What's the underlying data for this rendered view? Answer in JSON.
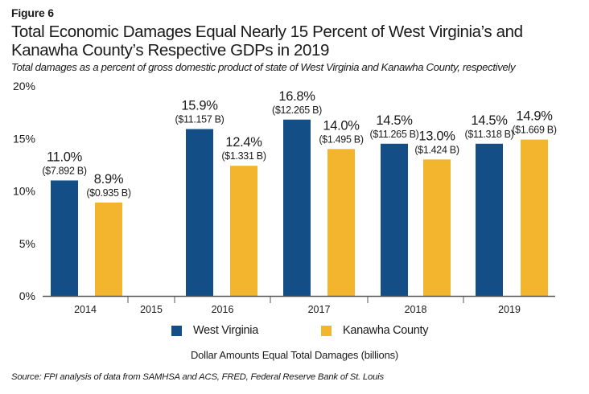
{
  "figure_label": "Figure 6",
  "title": "Total Economic Damages Equal Nearly 15 Percent of West Virginia’s and Kanawha County’s Respective GDPs in 2019",
  "subtitle": "Total damages as a percent of gross domestic product of state of West Virginia and Kanawha County, respectively",
  "note": "Dollar Amounts Equal Total Damages (billions)",
  "source": "Source: FPI analysis of data from SAMHSA and ACS, FRED, Federal Reserve Bank of St. Louis",
  "colors": {
    "west_virginia": "#144e86",
    "kanawha_county": "#f4b52e",
    "axis": "#555555",
    "text": "#1a1a1a"
  },
  "chart_data": {
    "type": "bar",
    "title": "Total Economic Damages Equal Nearly 15 Percent of West Virginia’s and Kanawha County’s Respective GDPs in 2019",
    "subtitle": "Total damages as a percent of gross domestic product of state of West Virginia and Kanawha County, respectively",
    "xlabel": "",
    "ylabel": "",
    "ylim": [
      0,
      20
    ],
    "yticks": [
      0,
      5,
      10,
      15,
      20
    ],
    "ytick_labels": [
      "0%",
      "5%",
      "10%",
      "15%",
      "20%"
    ],
    "grid": false,
    "legend_position": "bottom",
    "categories": [
      "2014",
      "2015",
      "2016",
      "2017",
      "2018",
      "2019"
    ],
    "series": [
      {
        "name": "West Virginia",
        "color": "#144e86",
        "values": [
          11.0,
          null,
          15.9,
          16.8,
          14.5,
          14.5
        ],
        "labels": [
          "11.0%",
          null,
          "15.9%",
          "16.8%",
          "14.5%",
          "14.5%"
        ],
        "dollar_labels": [
          "($7.892 B)",
          null,
          "($11.157 B)",
          "($12.265 B)",
          "($11.265 B)",
          "($11.318 B)"
        ],
        "damages_billions": [
          7.892,
          null,
          11.157,
          12.265,
          11.265,
          11.318
        ]
      },
      {
        "name": "Kanawha County",
        "color": "#f4b52e",
        "values": [
          8.9,
          null,
          12.4,
          14.0,
          13.0,
          14.9
        ],
        "labels": [
          "8.9%",
          null,
          "12.4%",
          "14.0%",
          "13.0%",
          "14.9%"
        ],
        "dollar_labels": [
          "($0.935 B)",
          null,
          "($1.331 B)",
          "($1.495 B)",
          "($1.424 B)",
          "($1.669 B)"
        ],
        "damages_billions": [
          0.935,
          null,
          1.331,
          1.495,
          1.424,
          1.669
        ]
      }
    ],
    "annotation": "Dollar Amounts Equal Total Damages (billions)"
  }
}
